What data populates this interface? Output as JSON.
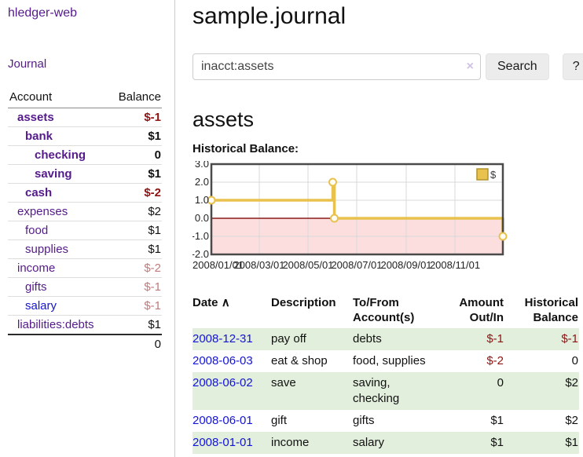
{
  "app": {
    "title": "hledger-web",
    "nav_journal": "Journal"
  },
  "sidebar": {
    "headers": {
      "account": "Account",
      "balance": "Balance"
    },
    "accounts": [
      {
        "name": "assets",
        "balance": "$-1"
      },
      {
        "name": "bank",
        "balance": "$1"
      },
      {
        "name": "checking",
        "balance": "0"
      },
      {
        "name": "saving",
        "balance": "$1"
      },
      {
        "name": "cash",
        "balance": "$-2"
      },
      {
        "name": "expenses",
        "balance": "$2"
      },
      {
        "name": "food",
        "balance": "$1"
      },
      {
        "name": "supplies",
        "balance": "$1"
      },
      {
        "name": "income",
        "balance": "$-2"
      },
      {
        "name": "gifts",
        "balance": "$-1"
      },
      {
        "name": "salary",
        "balance": "$-1"
      },
      {
        "name": "liabilities:debts",
        "balance": "$1"
      }
    ],
    "total": "0"
  },
  "header": {
    "title": "sample.journal"
  },
  "search": {
    "value": "inacct:assets",
    "clear_icon": "×",
    "button": "Search",
    "help_button": "?"
  },
  "account_page": {
    "heading": "assets",
    "chart_label": "Historical Balance:"
  },
  "chart_data": {
    "type": "line",
    "title": "Historical Balance",
    "step": true,
    "series": [
      {
        "name": "$",
        "points": [
          [
            "2008-01-01",
            1
          ],
          [
            "2008-06-01",
            2
          ],
          [
            "2008-06-03",
            0
          ],
          [
            "2008-12-31",
            -1
          ]
        ]
      }
    ],
    "x_range": [
      "2008-01-01",
      "2008-12-31"
    ],
    "x_ticks": [
      "2008/01/01",
      "2008/03/01",
      "2008/05/01",
      "2008/07/01",
      "2008/09/01",
      "2008/11/01"
    ],
    "x_tick_dates": [
      "2008-01-01",
      "2008-03-01",
      "2008-05-01",
      "2008-07-01",
      "2008-09-01",
      "2008-11-01"
    ],
    "y_ticks": [
      3,
      2,
      1,
      0,
      -1,
      -2
    ],
    "ylim": [
      -2,
      3
    ],
    "legend": {
      "label": "$",
      "position": "top-right"
    },
    "grid": true,
    "negative_region_shaded": true
  },
  "register": {
    "sort_arrow": "∧",
    "headers": [
      {
        "l1": "Date",
        "l2": ""
      },
      {
        "l1": "Description",
        "l2": ""
      },
      {
        "l1": "To/From",
        "l2": "Account(s)"
      },
      {
        "l1": "Amount",
        "l2": "Out/In"
      },
      {
        "l1": "Historical",
        "l2": "Balance"
      }
    ],
    "rows": [
      {
        "date": "2008-12-31",
        "description": "pay off",
        "accounts": "debts",
        "amount": "$-1",
        "balance": "$-1"
      },
      {
        "date": "2008-06-03",
        "description": "eat & shop",
        "accounts": "food, supplies",
        "amount": "$-2",
        "balance": "0"
      },
      {
        "date": "2008-06-02",
        "description": "save",
        "accounts": "saving, checking",
        "amount": "0",
        "balance": "$2"
      },
      {
        "date": "2008-06-01",
        "description": "gift",
        "accounts": "gifts",
        "amount": "$1",
        "balance": "$2"
      },
      {
        "date": "2008-01-01",
        "description": "income",
        "accounts": "salary",
        "amount": "$1",
        "balance": "$1"
      }
    ]
  },
  "colors": {
    "accent_purple": "#551a8b",
    "link_blue": "#1414d8",
    "negative_dark": "#8e1313",
    "negative_light": "#bd7b7b",
    "row_green": "#e2efdc",
    "button_bg": "#ececec",
    "chart_line": "#e8c24c",
    "chart_fill_negative": "#fcdede",
    "chart_zero_line": "#8b1a1a",
    "chart_grid": "#d9d9d9",
    "chart_border": "#4a4a4a"
  }
}
